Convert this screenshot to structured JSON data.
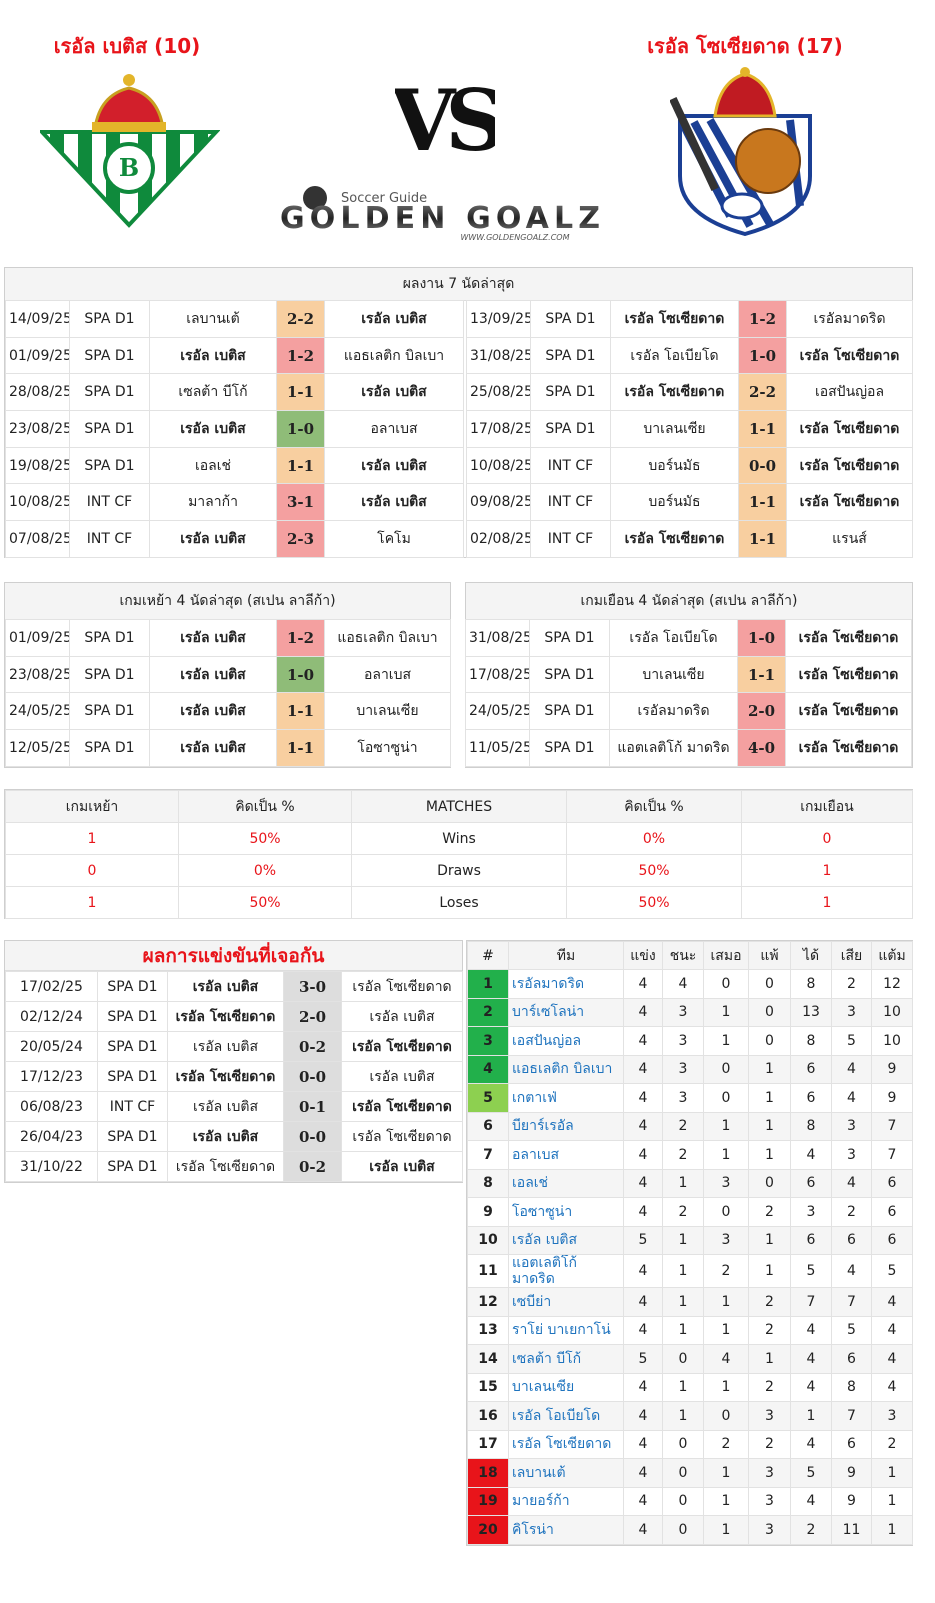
{
  "header": {
    "home_team": "เรอัล เบติส (10)",
    "away_team": "เรอัล โซเซียดาด (17)",
    "versus": "VS",
    "logo_tagline": "Soccer Guide",
    "logo_name": "GOLDEN GOALZ",
    "logo_url": "WWW.GOLDENGOALZ.COM"
  },
  "recent": {
    "title": "ผลงาน 7 นัดล่าสุด",
    "home_rows": [
      {
        "date": "14/09/25",
        "comp": "SPA D1",
        "home": "เลบานเต้",
        "score": "2-2",
        "away": "เรอัล เบติส",
        "color": "#f8cfa0"
      },
      {
        "date": "01/09/25",
        "comp": "SPA D1",
        "home": "เรอัล เบติส",
        "score": "1-2",
        "away": "แอธเลติก บิลเบา",
        "color": "#f4a0a0"
      },
      {
        "date": "28/08/25",
        "comp": "SPA D1",
        "home": "เซลต้า บีโก้",
        "score": "1-1",
        "away": "เรอัล เบติส",
        "color": "#f8cfa0"
      },
      {
        "date": "23/08/25",
        "comp": "SPA D1",
        "home": "เรอัล เบติส",
        "score": "1-0",
        "away": "อลาเบส",
        "color": "#8fbc78"
      },
      {
        "date": "19/08/25",
        "comp": "SPA D1",
        "home": "เอลเช่",
        "score": "1-1",
        "away": "เรอัล เบติส",
        "color": "#f8cfa0"
      },
      {
        "date": "10/08/25",
        "comp": "INT CF",
        "home": "มาลาก้า",
        "score": "3-1",
        "away": "เรอัล เบติส",
        "color": "#f4a0a0"
      },
      {
        "date": "07/08/25",
        "comp": "INT CF",
        "home": "เรอัล เบติส",
        "score": "2-3",
        "away": "โคโม",
        "color": "#f4a0a0"
      }
    ],
    "away_rows": [
      {
        "date": "13/09/25",
        "comp": "SPA D1",
        "home": "เรอัล โซเซียดาด",
        "score": "1-2",
        "away": "เรอัลมาดริด",
        "color": "#f4a0a0"
      },
      {
        "date": "31/08/25",
        "comp": "SPA D1",
        "home": "เรอัล โอเบียโด",
        "score": "1-0",
        "away": "เรอัล โซเซียดาด",
        "color": "#f4a0a0"
      },
      {
        "date": "25/08/25",
        "comp": "SPA D1",
        "home": "เรอัล โซเซียดาด",
        "score": "2-2",
        "away": "เอสปันญ่อล",
        "color": "#f8cfa0"
      },
      {
        "date": "17/08/25",
        "comp": "SPA D1",
        "home": "บาเลนเซีย",
        "score": "1-1",
        "away": "เรอัล โซเซียดาด",
        "color": "#f8cfa0"
      },
      {
        "date": "10/08/25",
        "comp": "INT CF",
        "home": "บอร์นมัธ",
        "score": "0-0",
        "away": "เรอัล โซเซียดาด",
        "color": "#f8cfa0"
      },
      {
        "date": "09/08/25",
        "comp": "INT CF",
        "home": "บอร์นมัธ",
        "score": "1-1",
        "away": "เรอัล โซเซียดาด",
        "color": "#f8cfa0"
      },
      {
        "date": "02/08/25",
        "comp": "INT CF",
        "home": "เรอัล โซเซียดาด",
        "score": "1-1",
        "away": "แรนส์",
        "color": "#f8cfa0"
      }
    ]
  },
  "last4": {
    "home_title": "เกมเหย้า 4 นัดล่าสุด (สเปน ลาลีก้า)",
    "home_rows": [
      {
        "date": "01/09/25",
        "comp": "SPA D1",
        "home": "เรอัล เบติส",
        "score": "1-2",
        "away": "แอธเลติก บิลเบา",
        "color": "#f4a0a0"
      },
      {
        "date": "23/08/25",
        "comp": "SPA D1",
        "home": "เรอัล เบติส",
        "score": "1-0",
        "away": "อลาเบส",
        "color": "#8fbc78"
      },
      {
        "date": "24/05/25",
        "comp": "SPA D1",
        "home": "เรอัล เบติส",
        "score": "1-1",
        "away": "บาเลนเซีย",
        "color": "#f8cfa0"
      },
      {
        "date": "12/05/25",
        "comp": "SPA D1",
        "home": "เรอัล เบติส",
        "score": "1-1",
        "away": "โอซาซูน่า",
        "color": "#f8cfa0"
      }
    ],
    "away_title": "เกมเยือน 4 นัดล่าสุด (สเปน ลาลีก้า)",
    "away_rows": [
      {
        "date": "31/08/25",
        "comp": "SPA D1",
        "home": "เรอัล โอเบียโด",
        "score": "1-0",
        "away": "เรอัล โซเซียดาด",
        "color": "#f4a0a0"
      },
      {
        "date": "17/08/25",
        "comp": "SPA D1",
        "home": "บาเลนเซีย",
        "score": "1-1",
        "away": "เรอัล โซเซียดาด",
        "color": "#f8cfa0"
      },
      {
        "date": "24/05/25",
        "comp": "SPA D1",
        "home": "เรอัลมาดริด",
        "score": "2-0",
        "away": "เรอัล โซเซียดาด",
        "color": "#f4a0a0"
      },
      {
        "date": "11/05/25",
        "comp": "SPA D1",
        "home": "แอตเลติโก้ มาดริด",
        "score": "4-0",
        "away": "เรอัล โซเซียดาด",
        "color": "#f4a0a0"
      }
    ]
  },
  "summary": {
    "headers": [
      "เกมเหย้า",
      "คิดเป็น %",
      "MATCHES",
      "คิดเป็น %",
      "เกมเยือน"
    ],
    "rows": [
      [
        1,
        "50%",
        "Wins",
        "0%",
        0
      ],
      [
        0,
        "0%",
        "Draws",
        "50%",
        1
      ],
      [
        1,
        "50%",
        "Loses",
        "50%",
        1
      ]
    ]
  },
  "h2h": {
    "title": "ผลการแข่งขันที่เจอกัน",
    "rows": [
      {
        "date": "17/02/25",
        "comp": "SPA D1",
        "home": "เรอัล เบติส",
        "score": "3-0",
        "away": "เรอัล โซเซียดาด"
      },
      {
        "date": "02/12/24",
        "comp": "SPA D1",
        "home": "เรอัล โซเซียดาด",
        "score": "2-0",
        "away": "เรอัล เบติส"
      },
      {
        "date": "20/05/24",
        "comp": "SPA D1",
        "home": "เรอัล เบติส",
        "score": "0-2",
        "away": "เรอัล โซเซียดาด"
      },
      {
        "date": "17/12/23",
        "comp": "SPA D1",
        "home": "เรอัล โซเซียดาด",
        "score": "0-0",
        "away": "เรอัล เบติส"
      },
      {
        "date": "06/08/23",
        "comp": "INT CF",
        "home": "เรอัล เบติส",
        "score": "0-1",
        "away": "เรอัล โซเซียดาด"
      },
      {
        "date": "26/04/23",
        "comp": "SPA D1",
        "home": "เรอัล เบติส",
        "score": "0-0",
        "away": "เรอัล โซเซียดาด"
      },
      {
        "date": "31/10/22",
        "comp": "SPA D1",
        "home": "เรอัล โซเซียดาด",
        "score": "0-2",
        "away": "เรอัล เบติส"
      }
    ]
  },
  "standings": {
    "headers": [
      "#",
      "ทีม",
      "แข่ง",
      "ชนะ",
      "เสมอ",
      "แพ้",
      "ได้",
      "เสีย",
      "แต้ม"
    ],
    "rows": [
      {
        "rank": 1,
        "team": "เรอัลมาดริด",
        "played": 4,
        "won": 4,
        "drawn": 0,
        "lost": 0,
        "gf": 8,
        "ga": 2,
        "points": 12,
        "color": "#22b04b"
      },
      {
        "rank": 2,
        "team": "บาร์เซโลน่า",
        "played": 4,
        "won": 3,
        "drawn": 1,
        "lost": 0,
        "gf": 13,
        "ga": 3,
        "points": 10,
        "color": "#22b04b"
      },
      {
        "rank": 3,
        "team": "เอสปันญ่อล",
        "played": 4,
        "won": 3,
        "drawn": 1,
        "lost": 0,
        "gf": 8,
        "ga": 5,
        "points": 10,
        "color": "#22b04b"
      },
      {
        "rank": 4,
        "team": "แอธเลติก บิลเบา",
        "played": 4,
        "won": 3,
        "drawn": 0,
        "lost": 1,
        "gf": 6,
        "ga": 4,
        "points": 9,
        "color": "#22b04b"
      },
      {
        "rank": 5,
        "team": "เกตาเฟ่",
        "played": 4,
        "won": 3,
        "drawn": 0,
        "lost": 1,
        "gf": 6,
        "ga": 4,
        "points": 9,
        "color": "#8dd050"
      },
      {
        "rank": 6,
        "team": "บียาร์เรอัล",
        "played": 4,
        "won": 2,
        "drawn": 1,
        "lost": 1,
        "gf": 8,
        "ga": 3,
        "points": 7
      },
      {
        "rank": 7,
        "team": "อลาเบส",
        "played": 4,
        "won": 2,
        "drawn": 1,
        "lost": 1,
        "gf": 4,
        "ga": 3,
        "points": 7
      },
      {
        "rank": 8,
        "team": "เอลเช่",
        "played": 4,
        "won": 1,
        "drawn": 3,
        "lost": 0,
        "gf": 6,
        "ga": 4,
        "points": 6
      },
      {
        "rank": 9,
        "team": "โอซาซูน่า",
        "played": 4,
        "won": 2,
        "drawn": 0,
        "lost": 2,
        "gf": 3,
        "ga": 2,
        "points": 6
      },
      {
        "rank": 10,
        "team": "เรอัล เบติส",
        "played": 5,
        "won": 1,
        "drawn": 3,
        "lost": 1,
        "gf": 6,
        "ga": 6,
        "points": 6
      },
      {
        "rank": 11,
        "team": "แอตเลติโก้ มาดริด",
        "played": 4,
        "won": 1,
        "drawn": 2,
        "lost": 1,
        "gf": 5,
        "ga": 4,
        "points": 5
      },
      {
        "rank": 12,
        "team": "เซบีย่า",
        "played": 4,
        "won": 1,
        "drawn": 1,
        "lost": 2,
        "gf": 7,
        "ga": 7,
        "points": 4
      },
      {
        "rank": 13,
        "team": "ราโย่ บาเยกาโน่",
        "played": 4,
        "won": 1,
        "drawn": 1,
        "lost": 2,
        "gf": 4,
        "ga": 5,
        "points": 4
      },
      {
        "rank": 14,
        "team": "เซลต้า บีโก้",
        "played": 5,
        "won": 0,
        "drawn": 4,
        "lost": 1,
        "gf": 4,
        "ga": 6,
        "points": 4
      },
      {
        "rank": 15,
        "team": "บาเลนเซีย",
        "played": 4,
        "won": 1,
        "drawn": 1,
        "lost": 2,
        "gf": 4,
        "ga": 8,
        "points": 4
      },
      {
        "rank": 16,
        "team": "เรอัล โอเบียโด",
        "played": 4,
        "won": 1,
        "drawn": 0,
        "lost": 3,
        "gf": 1,
        "ga": 7,
        "points": 3
      },
      {
        "rank": 17,
        "team": "เรอัล โซเซียดาด",
        "played": 4,
        "won": 0,
        "drawn": 2,
        "lost": 2,
        "gf": 4,
        "ga": 6,
        "points": 2
      },
      {
        "rank": 18,
        "team": "เลบานเต้",
        "played": 4,
        "won": 0,
        "drawn": 1,
        "lost": 3,
        "gf": 5,
        "ga": 9,
        "points": 1,
        "color": "#e8141a"
      },
      {
        "rank": 19,
        "team": "มายอร์ก้า",
        "played": 4,
        "won": 0,
        "drawn": 1,
        "lost": 3,
        "gf": 4,
        "ga": 9,
        "points": 1,
        "color": "#e8141a"
      },
      {
        "rank": 20,
        "team": "คิโรน่า",
        "played": 4,
        "won": 0,
        "drawn": 1,
        "lost": 3,
        "gf": 2,
        "ga": 11,
        "points": 1,
        "color": "#e8141a"
      }
    ]
  }
}
